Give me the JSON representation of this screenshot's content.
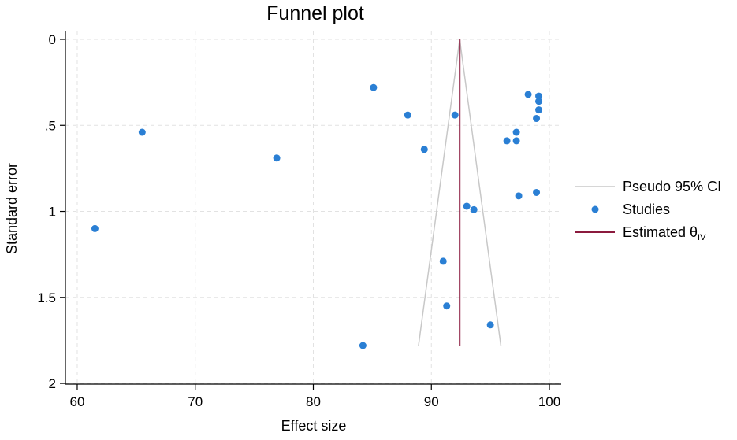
{
  "chart_data": {
    "type": "scatter",
    "title": "Funnel plot",
    "xlabel": "Effect size",
    "ylabel": "Standard error",
    "xlim": [
      59,
      101
    ],
    "ylim": [
      0,
      2.05
    ],
    "y_reversed": true,
    "x_ticks": [
      60,
      70,
      80,
      90,
      100
    ],
    "y_ticks": [
      0,
      0.5,
      1,
      1.5,
      2
    ],
    "y_tick_labels": [
      "0",
      ".5",
      "1",
      "1.5",
      "2"
    ],
    "grid": true,
    "legend_position": "right",
    "estimate": 92.4,
    "ci_max_se": 1.78,
    "colors": {
      "studies": "#2a7fd4",
      "estimate": "#8b1a3e",
      "ci": "#c8c8c8",
      "grid": "#e2e2e2"
    },
    "legend": [
      {
        "label": "Pseudo 95% CI",
        "type": "line",
        "sub": ""
      },
      {
        "label": "Studies",
        "type": "point",
        "sub": ""
      },
      {
        "label": "Estimated θ",
        "type": "line",
        "sub": "IV"
      }
    ],
    "series": [
      {
        "name": "Studies",
        "x": [
          85.1,
          88.0,
          92.0,
          89.4,
          65.5,
          76.9,
          61.5,
          98.2,
          99.1,
          99.1,
          99.1,
          98.9,
          97.2,
          96.4,
          97.2,
          98.9,
          97.4,
          93.0,
          93.6,
          91.0,
          91.3,
          95.0,
          84.2
        ],
        "y": [
          0.28,
          0.44,
          0.44,
          0.64,
          0.54,
          0.69,
          1.1,
          0.32,
          0.33,
          0.36,
          0.41,
          0.46,
          0.54,
          0.59,
          0.59,
          0.89,
          0.91,
          0.97,
          0.99,
          1.29,
          1.55,
          1.66,
          1.78
        ]
      }
    ]
  }
}
